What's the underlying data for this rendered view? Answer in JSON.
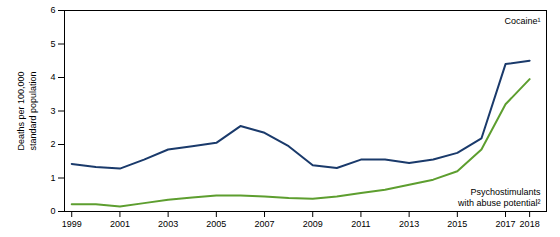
{
  "chart_data": {
    "type": "line",
    "x": [
      1999,
      2000,
      2001,
      2002,
      2003,
      2004,
      2005,
      2006,
      2007,
      2008,
      2009,
      2010,
      2011,
      2012,
      2013,
      2014,
      2015,
      2016,
      2017,
      2018
    ],
    "series": [
      {
        "name": "Cocaine¹",
        "color": "#1a3a6b",
        "values": [
          1.42,
          1.33,
          1.28,
          1.55,
          1.85,
          1.95,
          2.05,
          2.55,
          2.35,
          1.95,
          1.38,
          1.3,
          1.55,
          1.55,
          1.45,
          1.55,
          1.75,
          2.18,
          4.4,
          4.5
        ]
      },
      {
        "name": "Psychostimulants\nwith abuse potential²",
        "color": "#5d9e2f",
        "values": [
          0.22,
          0.22,
          0.15,
          0.25,
          0.35,
          0.42,
          0.48,
          0.48,
          0.45,
          0.4,
          0.38,
          0.45,
          0.55,
          0.65,
          0.8,
          0.95,
          1.2,
          1.85,
          3.2,
          3.95
        ]
      }
    ],
    "y_label": "Deaths per 100,000\nstandard population",
    "xlim": [
      1998.7,
      2018.7
    ],
    "xticks": [
      1999,
      2001,
      2003,
      2005,
      2007,
      2009,
      2011,
      2013,
      2015,
      2017,
      2018
    ],
    "ylim": [
      0,
      6
    ],
    "yticks": [
      0,
      1,
      2,
      3,
      4,
      5,
      6
    ],
    "grid": false
  }
}
